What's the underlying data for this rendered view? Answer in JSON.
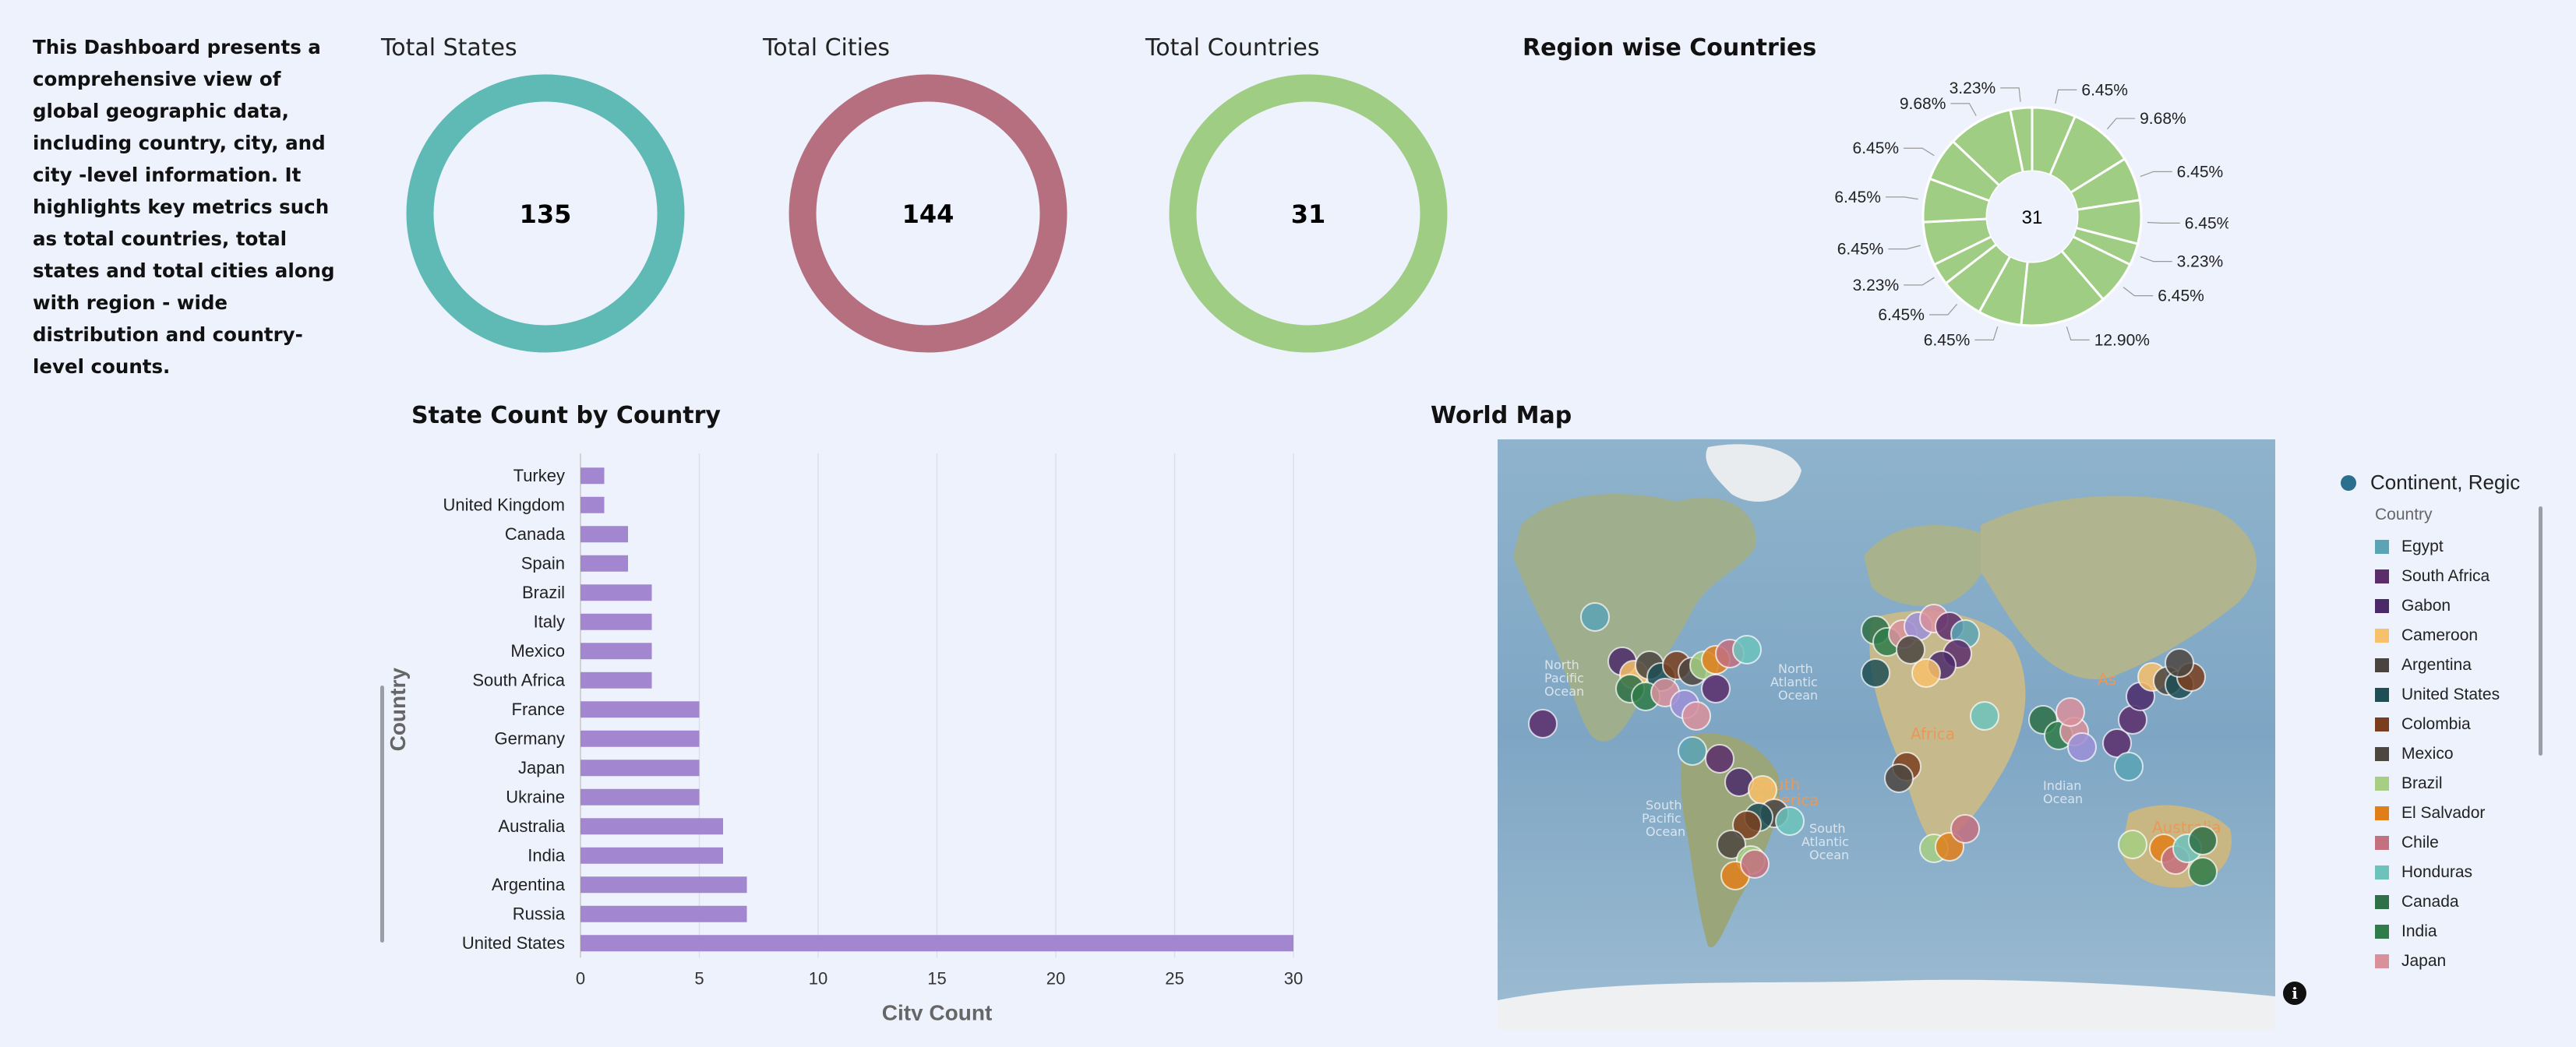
{
  "intro": {
    "text": "This Dashboard presents a comprehensive view of global geographic data, including country, city, and city -level information. It highlights key metrics such as total countries, total states and total cities along with region - wide distribution and country-level counts."
  },
  "kpis": [
    {
      "title": "Total States",
      "value": "135",
      "color": "#5fbab5"
    },
    {
      "title": "Total Cities",
      "value": "144",
      "color": "#b56f7e"
    },
    {
      "title": "Total Countries",
      "value": "31",
      "color": "#9fcd84"
    }
  ],
  "region_chart": {
    "title": "Region wise Countries",
    "center": "31",
    "color": "#9fcd84",
    "labels": [
      "6.45%",
      "9.68%",
      "6.45%",
      "6.45%",
      "3.23%",
      "6.45%",
      "12.90%",
      "6.45%",
      "6.45%",
      "3.23%",
      "6.45%",
      "6.45%",
      "6.45%",
      "9.68%",
      "3.23%"
    ]
  },
  "bar_section": {
    "title": "State Count by Country"
  },
  "map_section": {
    "title": "World Map"
  },
  "legend": {
    "title": "Continent, Regic",
    "subtitle": "Country",
    "items": [
      {
        "name": "Egypt",
        "color": "#5ba3b5"
      },
      {
        "name": "South Africa",
        "color": "#5b2d6b"
      },
      {
        "name": "Gabon",
        "color": "#4b2a6a"
      },
      {
        "name": "Cameroon",
        "color": "#f7c06a"
      },
      {
        "name": "Argentina",
        "color": "#4a4440"
      },
      {
        "name": "United States",
        "color": "#1f4f54"
      },
      {
        "name": "Colombia",
        "color": "#7a3e1f"
      },
      {
        "name": "Mexico",
        "color": "#4c4640"
      },
      {
        "name": "Brazil",
        "color": "#a6cf84"
      },
      {
        "name": "El Salvador",
        "color": "#e07f1a"
      },
      {
        "name": "Chile",
        "color": "#c3707f"
      },
      {
        "name": "Honduras",
        "color": "#6cc3bc"
      },
      {
        "name": "Canada",
        "color": "#2e7048"
      },
      {
        "name": "India",
        "color": "#2f7b49"
      },
      {
        "name": "Japan",
        "color": "#d9909b"
      }
    ]
  },
  "chart_data": [
    {
      "type": "pie",
      "title": "Region wise Countries",
      "center_label": "31",
      "values": [
        6.45,
        9.68,
        6.45,
        6.45,
        3.23,
        6.45,
        12.9,
        6.45,
        6.45,
        3.23,
        6.45,
        6.45,
        6.45,
        9.68,
        3.23
      ],
      "labels": [
        "6.45%",
        "9.68%",
        "6.45%",
        "6.45%",
        "3.23%",
        "6.45%",
        "12.90%",
        "6.45%",
        "6.45%",
        "3.23%",
        "6.45%",
        "6.45%",
        "6.45%",
        "9.68%",
        "3.23%"
      ]
    },
    {
      "type": "bar",
      "orientation": "horizontal",
      "title": "State Count by Country",
      "xlabel": "City Count",
      "ylabel": "Country",
      "categories": [
        "Turkey",
        "United Kingdom",
        "Canada",
        "Spain",
        "Brazil",
        "Italy",
        "Mexico",
        "South Africa",
        "France",
        "Germany",
        "Japan",
        "Ukraine",
        "Australia",
        "India",
        "Argentina",
        "Russia",
        "United States"
      ],
      "values": [
        1,
        1,
        2,
        2,
        3,
        3,
        3,
        3,
        5,
        5,
        5,
        5,
        6,
        6,
        7,
        7,
        30
      ],
      "xlim": [
        0,
        30
      ],
      "xticks": [
        0,
        5,
        10,
        15,
        20,
        25,
        30
      ],
      "grid": true,
      "bar_color": "#a287d0"
    }
  ]
}
